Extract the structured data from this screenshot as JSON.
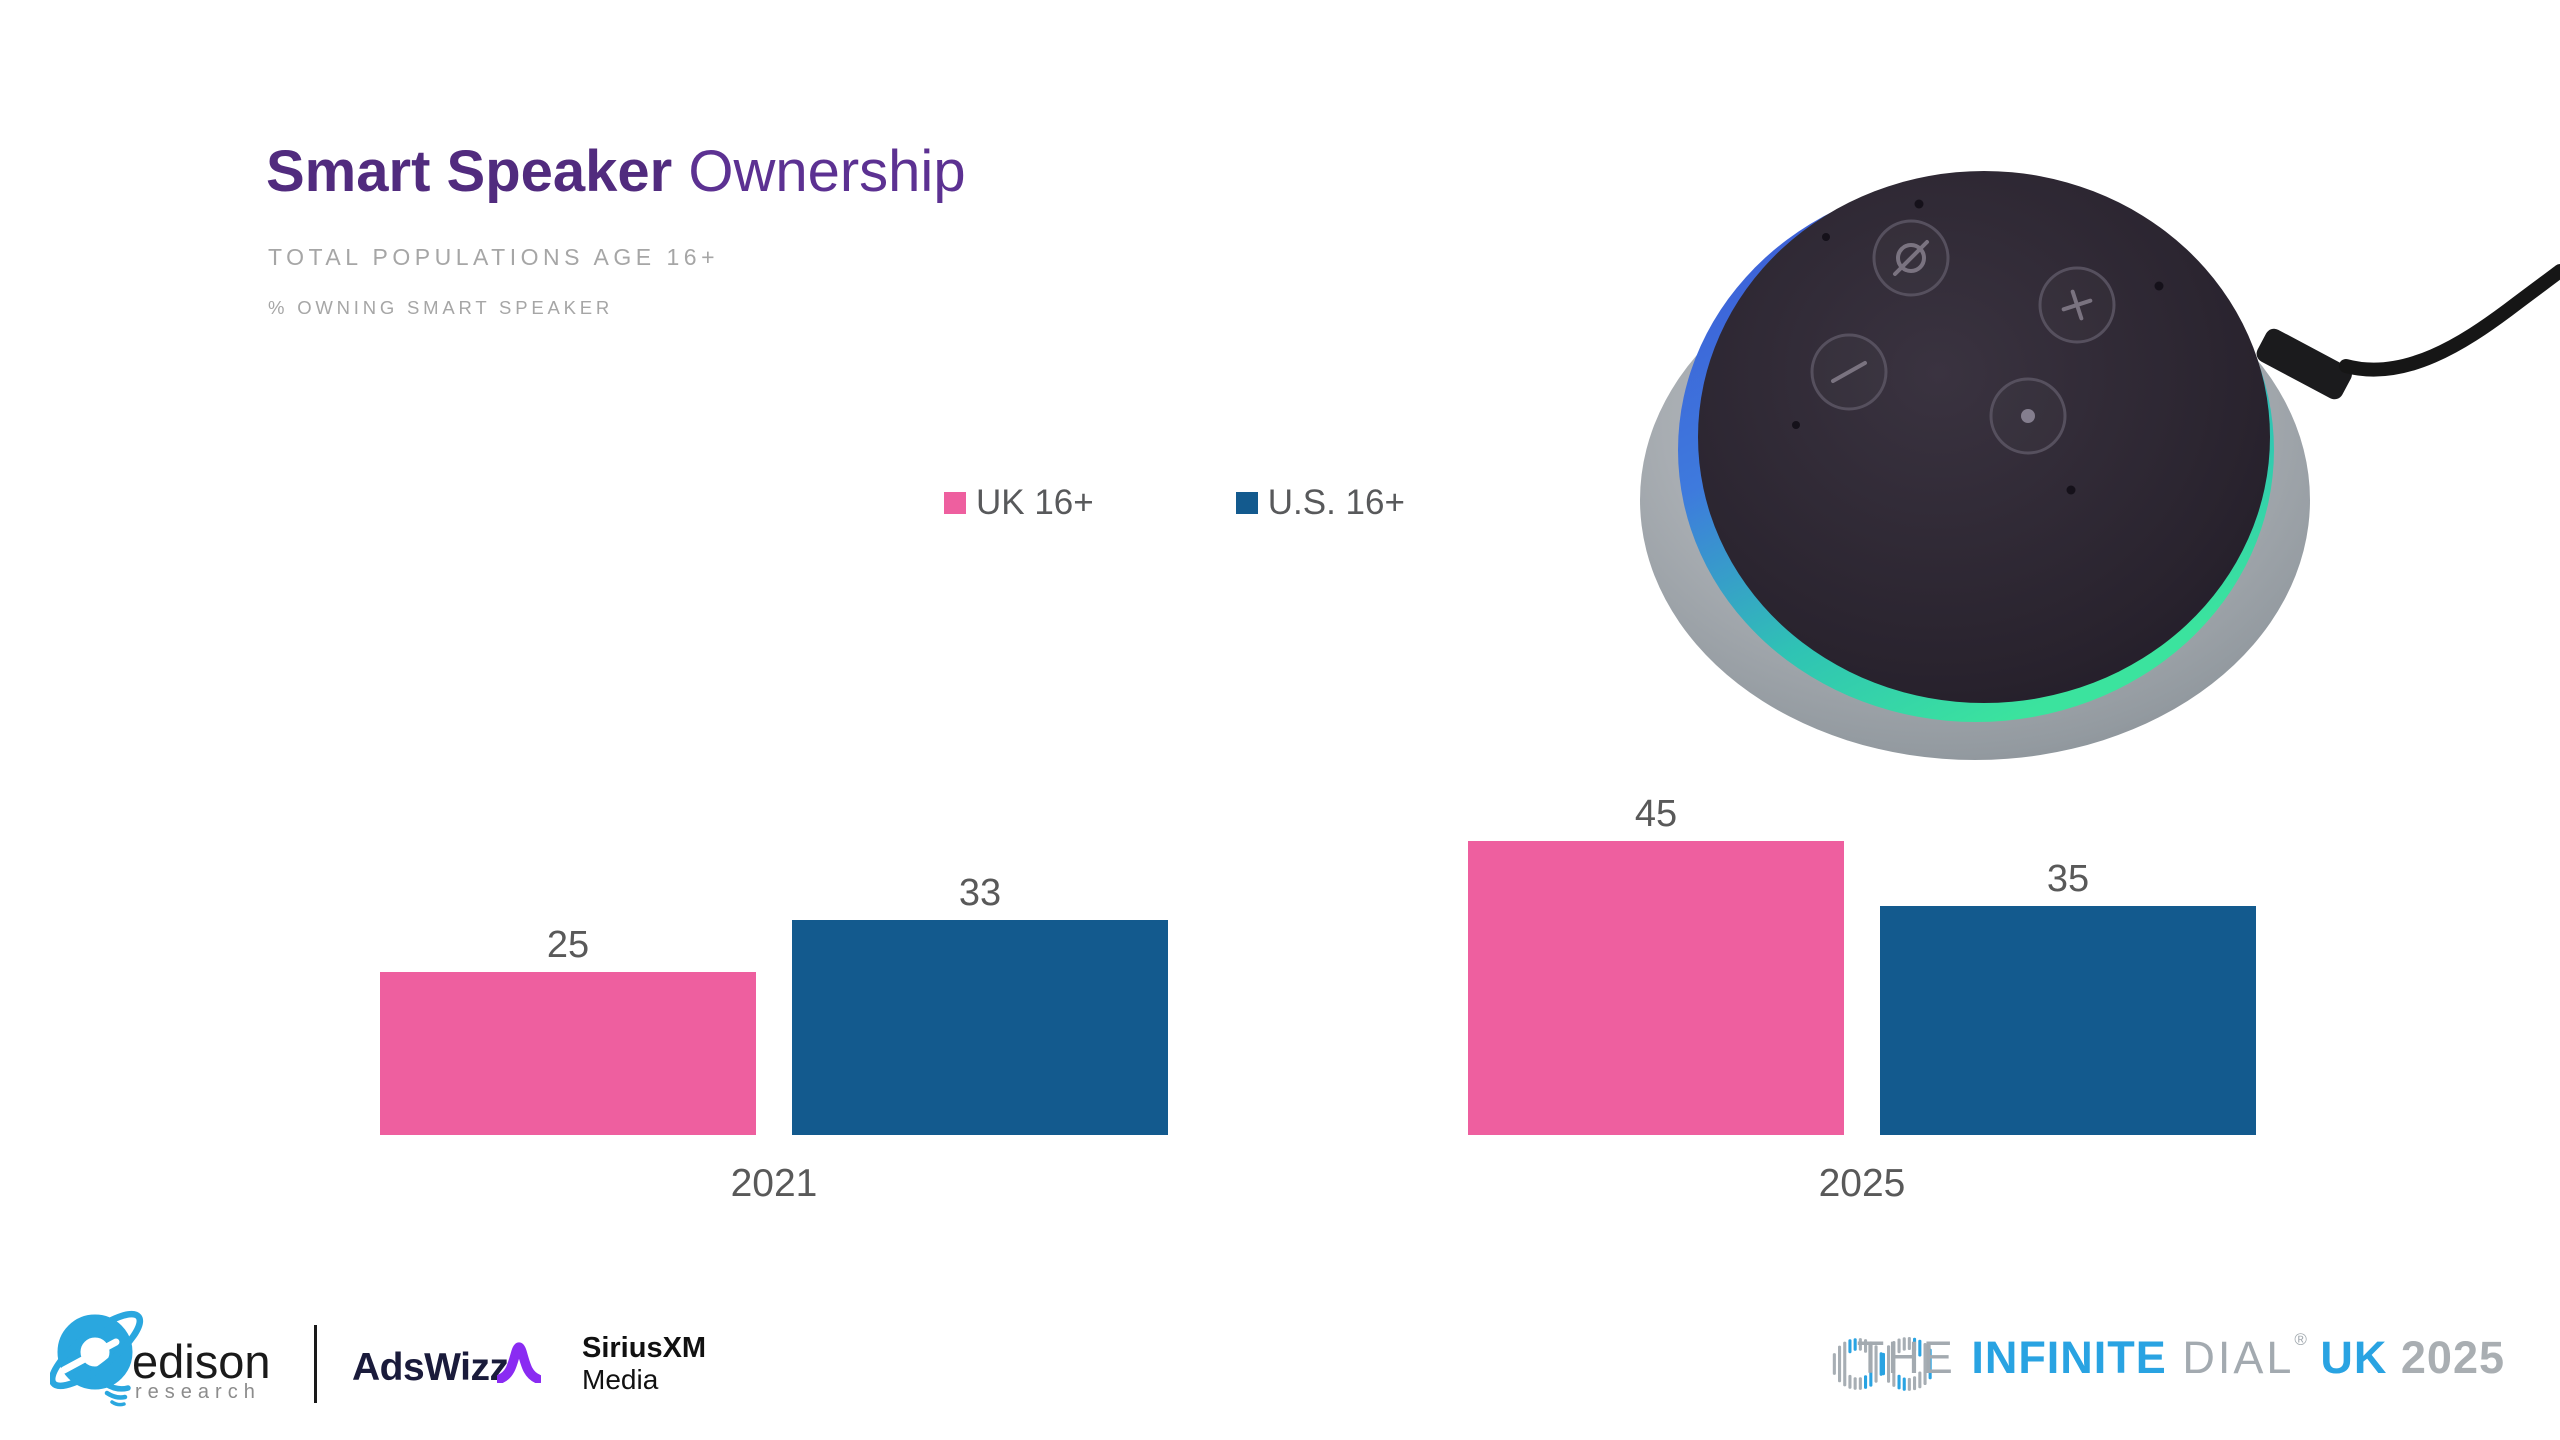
{
  "header": {
    "title_bold": "Smart Speaker",
    "title_regular": " Ownership",
    "subtitle": "TOTAL POPULATIONS AGE 16+",
    "metric_note": "% OWNING SMART SPEAKER",
    "title_color_bold": "#512B7E",
    "title_color_regular": "#5C3192"
  },
  "chart_data": {
    "type": "bar",
    "title": "Smart Speaker Ownership",
    "subtitle": "Total Populations Age 16+",
    "ylabel": "% Owning Smart Speaker",
    "categories": [
      "2021",
      "2025"
    ],
    "series": [
      {
        "name": "UK 16+",
        "color": "#EE5F9F",
        "values": [
          25,
          45
        ]
      },
      {
        "name": "U.S. 16+",
        "color": "#135A8E",
        "values": [
          33,
          35
        ]
      }
    ],
    "ylim": [
      0,
      50
    ],
    "grid": false,
    "axes_visible": false,
    "data_labels": true,
    "legend_position": "top-center",
    "label_color": "#595959"
  },
  "speaker_image": {
    "alt": "amazon-echo-dot-smart-speaker-photo"
  },
  "footer": {
    "edison": {
      "name": "edison",
      "sub": "research",
      "brand_blue": "#2AA7DF"
    },
    "adswizz": {
      "name": "AdsWizz",
      "mark_color": "#8A2BF2",
      "text_color": "#1A1B3B"
    },
    "siriusxm": {
      "line1": "SiriusXM",
      "line2": "Media"
    },
    "infinite_dial": {
      "the": "THE ",
      "infinite": "INFINITE",
      "dial": " DIAL",
      "reg": "®",
      "uk": " UK ",
      "year": "2025",
      "blue": "#29A3E2",
      "gray": "#A3AAB0"
    }
  }
}
